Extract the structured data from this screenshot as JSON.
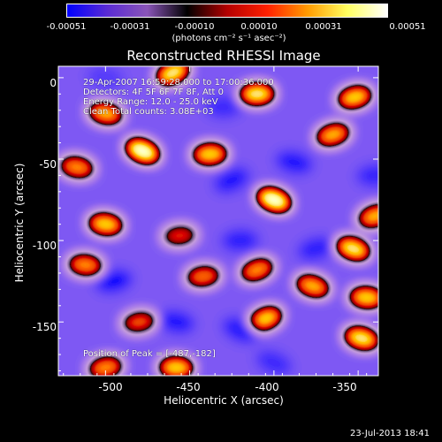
{
  "chart_data": {
    "type": "heatmap",
    "title": "Reconstructed RHESSI Image",
    "xlabel": "Heliocentric X (arcsec)",
    "ylabel": "Heliocentric Y (arcsec)",
    "xlim": [
      -528,
      -338
    ],
    "ylim": [
      -183,
      7
    ],
    "x_ticks": [
      -500,
      -450,
      -400,
      -350
    ],
    "y_ticks": [
      0,
      -50,
      -100,
      -150
    ],
    "colorbar": {
      "ticks": [
        "-0.00051",
        "-0.00031",
        "-0.00010",
        "0.00010",
        "0.00031",
        "0.00051"
      ],
      "unit": "(photons cm⁻² s⁻¹ asec⁻²)",
      "colors": [
        "#0000ff",
        "#5a2bd4",
        "#8a55b8",
        "#000000",
        "#b40000",
        "#ff2000",
        "#ff9a00",
        "#ffff60",
        "#ffffff"
      ]
    },
    "annotations": {
      "time_range": "29-Apr-2007 16:59:28.000 to 17:00:36.000",
      "detectors": "Detectors: 4F 5F 6F 7F 8F, Att 0",
      "energy_range": "Energy Range: 12.0 - 25.0 keV",
      "method": "Clean    Total counts: 3.08E+03",
      "peak": "Position of Peak = [-487,-182]"
    },
    "sources": [
      {
        "x": -460,
        "y": 3,
        "v": 0.9
      },
      {
        "x": -500,
        "y": -22,
        "v": 0.8
      },
      {
        "x": -410,
        "y": -10,
        "v": 0.9
      },
      {
        "x": -352,
        "y": -12,
        "v": 0.85
      },
      {
        "x": -478,
        "y": -45,
        "v": 1.0
      },
      {
        "x": -517,
        "y": -55,
        "v": 0.75
      },
      {
        "x": -438,
        "y": -47,
        "v": 0.85
      },
      {
        "x": -365,
        "y": -35,
        "v": 0.8
      },
      {
        "x": -400,
        "y": -75,
        "v": 1.0
      },
      {
        "x": -500,
        "y": -90,
        "v": 0.85
      },
      {
        "x": -456,
        "y": -97,
        "v": 0.6
      },
      {
        "x": -340,
        "y": -85,
        "v": 0.8
      },
      {
        "x": -353,
        "y": -105,
        "v": 0.9
      },
      {
        "x": -512,
        "y": -115,
        "v": 0.75
      },
      {
        "x": -442,
        "y": -122,
        "v": 0.7
      },
      {
        "x": -410,
        "y": -118,
        "v": 0.75
      },
      {
        "x": -377,
        "y": -128,
        "v": 0.8
      },
      {
        "x": -345,
        "y": -135,
        "v": 0.85
      },
      {
        "x": -480,
        "y": -150,
        "v": 0.65
      },
      {
        "x": -405,
        "y": -148,
        "v": 0.85
      },
      {
        "x": -348,
        "y": -160,
        "v": 0.9
      },
      {
        "x": -458,
        "y": -178,
        "v": 0.85
      },
      {
        "x": -500,
        "y": -178,
        "v": 0.75
      },
      {
        "x": -425,
        "y": -63,
        "v": -0.85
      },
      {
        "x": -388,
        "y": -52,
        "v": -0.9
      },
      {
        "x": -430,
        "y": -18,
        "v": -0.55
      },
      {
        "x": -495,
        "y": -125,
        "v": -1.0
      },
      {
        "x": -420,
        "y": -155,
        "v": -0.8
      },
      {
        "x": -458,
        "y": -150,
        "v": -0.8
      },
      {
        "x": -420,
        "y": -100,
        "v": -0.7
      },
      {
        "x": -375,
        "y": -105,
        "v": -0.65
      },
      {
        "x": -400,
        "y": -175,
        "v": -0.55
      },
      {
        "x": -500,
        "y": 0,
        "v": -0.3
      },
      {
        "x": -340,
        "y": -60,
        "v": -0.6
      }
    ]
  },
  "timestamp": "23-Jul-2013 18:41"
}
